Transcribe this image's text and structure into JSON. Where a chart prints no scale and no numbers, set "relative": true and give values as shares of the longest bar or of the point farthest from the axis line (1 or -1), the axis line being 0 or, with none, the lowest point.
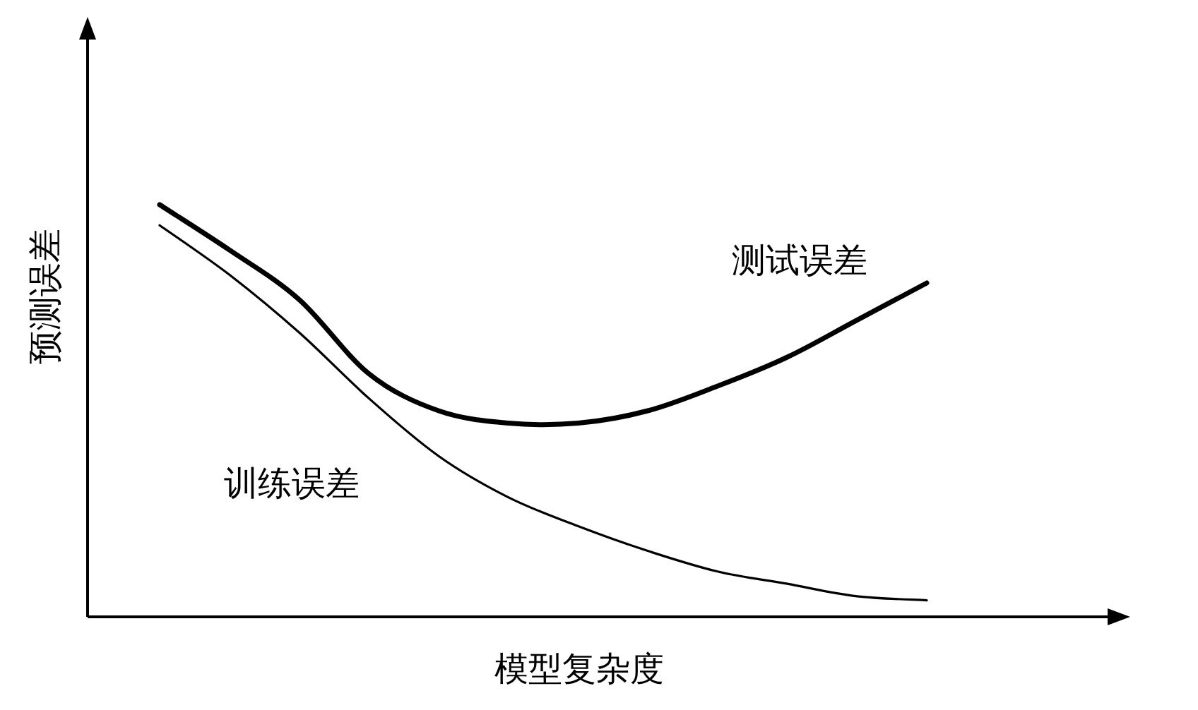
{
  "chart_data": {
    "type": "line",
    "relative": true,
    "xlabel": "模型复杂度",
    "ylabel": "预测误差",
    "marker": "none",
    "line_style": "solid",
    "categories": [
      null,
      null,
      null,
      null,
      null,
      null,
      null,
      null,
      null,
      null,
      null,
      null
    ],
    "series": [
      {
        "name": "测试误差",
        "color": "#000000",
        "values": [
          1.0,
          0.89,
          0.77,
          0.59,
          0.5,
          0.47,
          0.47,
          0.5,
          0.56,
          0.63,
          0.72,
          0.81
        ]
      },
      {
        "name": "训练误差",
        "color": "#000000",
        "values": [
          0.95,
          0.83,
          0.69,
          0.53,
          0.39,
          0.29,
          0.22,
          0.16,
          0.11,
          0.08,
          0.05,
          0.04
        ]
      }
    ]
  }
}
